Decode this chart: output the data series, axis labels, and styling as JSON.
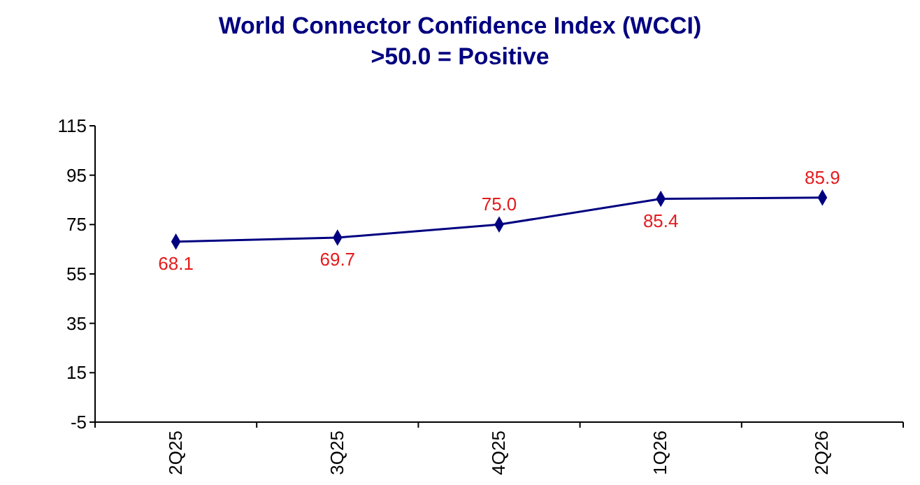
{
  "chart_data": {
    "type": "line",
    "title": "World Connector Confidence Index (WCCI)",
    "subtitle": ">50.0 = Positive",
    "categories": [
      "2Q25",
      "3Q25",
      "4Q25",
      "1Q26",
      "2Q26"
    ],
    "series": [
      {
        "color": "#000080",
        "values": [
          68.1,
          69.7,
          75.0,
          85.4,
          85.9
        ]
      }
    ],
    "value_labels": [
      "68.1",
      "69.7",
      "75.0",
      "85.4",
      "85.9"
    ],
    "ylim": [
      -5,
      115
    ],
    "yticks": [
      -5,
      15,
      35,
      55,
      75,
      95,
      115
    ],
    "marker": "diamond",
    "line_style": "solid",
    "grid": false
  }
}
